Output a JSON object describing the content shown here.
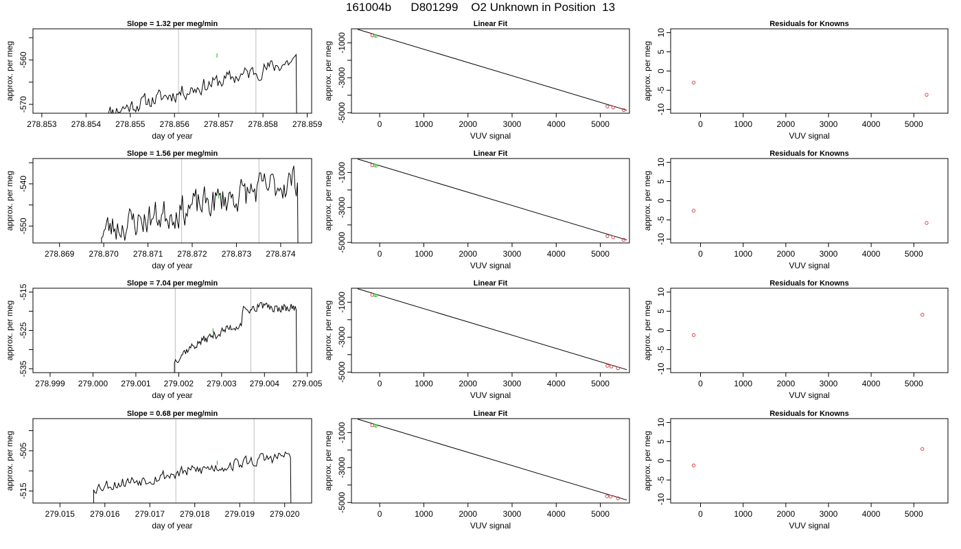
{
  "figure": {
    "title": "161004b      D801299    O2 Unknown in Position  13"
  },
  "chart_data": [
    {
      "type": "line",
      "row": 1,
      "title": "Slope =  1.32  per meg/min",
      "xlabel": "day of year",
      "ylabel": "approx. per meg",
      "xlim": [
        278.8528,
        278.8591
      ],
      "ylim": [
        -572,
        -553
      ],
      "xticks": [
        278.853,
        278.854,
        278.855,
        278.856,
        278.857,
        278.858,
        278.859
      ],
      "xtick_labels": [
        "278.853",
        "278.854",
        "278.855",
        "278.856",
        "278.857",
        "278.858",
        "278.859"
      ],
      "yticks": [
        -570,
        -565,
        -560,
        -555
      ],
      "ytick_labels": [
        "-570",
        "",
        "-560",
        ""
      ],
      "vlines": [
        278.85609,
        278.85784
      ],
      "series": [
        {
          "x_start": 278.8544,
          "x_end": 278.85875,
          "points": 150,
          "start": -572,
          "end": -560,
          "noise": 1.6,
          "seed": 11,
          "drop_to": -572
        }
      ],
      "marker": {
        "x": 278.85696,
        "y": -559
      }
    },
    {
      "type": "scatter",
      "row": 1,
      "title": "Linear Fit",
      "xlabel": "VUV signal",
      "ylabel": "approx. per meg",
      "xlim": [
        -640,
        5660
      ],
      "ylim": [
        -5030,
        -200
      ],
      "xticks": [
        0,
        1000,
        2000,
        3000,
        4000,
        5000
      ],
      "xtick_labels": [
        "0",
        "1000",
        "2000",
        "3000",
        "4000",
        "5000"
      ],
      "yticks": [
        -5000,
        -4000,
        -3000,
        -2000,
        -1000
      ],
      "ytick_labels": [
        "-5000",
        "",
        "-3000",
        "",
        "-1000"
      ],
      "fit": {
        "x": [
          -500,
          5600
        ],
        "y": [
          -230,
          -4860
        ]
      },
      "knowns": {
        "x": [
          -170,
          5160,
          5290,
          5530
        ],
        "y": [
          -580,
          -4640,
          -4700,
          -4850
        ]
      },
      "unknowns": {
        "x": [
          -110,
          -80
        ],
        "y": [
          -600,
          -620
        ]
      }
    },
    {
      "type": "scatter",
      "row": 1,
      "title": "Residuals for Knowns",
      "xlabel": "VUV signal",
      "ylabel": "approx. per meg",
      "xlim": [
        -700,
        5800
      ],
      "ylim": [
        -11,
        11
      ],
      "xticks": [
        0,
        1000,
        2000,
        3000,
        4000,
        5000
      ],
      "xtick_labels": [
        "0",
        "1000",
        "2000",
        "3000",
        "4000",
        "5000"
      ],
      "yticks": [
        -10,
        -5,
        0,
        5,
        10
      ],
      "ytick_labels": [
        "-10",
        "-5",
        "0",
        "5",
        "10"
      ],
      "points": {
        "x": [
          -160,
          5300
        ],
        "y": [
          -3,
          -6.2
        ]
      }
    },
    {
      "type": "line",
      "row": 2,
      "title": "Slope =  1.56  per meg/min",
      "xlabel": "day of year",
      "ylabel": "approx. per meg",
      "xlim": [
        278.8684,
        278.8747
      ],
      "ylim": [
        -554,
        -534
      ],
      "xticks": [
        278.869,
        278.87,
        278.871,
        278.872,
        278.873,
        278.874
      ],
      "xtick_labels": [
        "278.869",
        "278.870",
        "278.871",
        "278.872",
        "278.873",
        "278.874"
      ],
      "yticks": [
        -550,
        -545,
        -540,
        -535
      ],
      "ytick_labels": [
        "-550",
        "",
        "-540",
        ""
      ],
      "vlines": [
        278.87176,
        278.87351
      ],
      "series": [
        {
          "x_start": 278.86995,
          "x_end": 278.87438,
          "points": 160,
          "start": -551,
          "end": -539,
          "noise": 3.4,
          "seed": 23,
          "drop_to": -554
        }
      ],
      "marker": {
        "x": 278.8726,
        "y": -543
      }
    },
    {
      "type": "scatter",
      "row": 2,
      "title": "Linear Fit",
      "xlabel": "VUV signal",
      "ylabel": "approx. per meg",
      "xlim": [
        -640,
        5660
      ],
      "ylim": [
        -5030,
        -200
      ],
      "xticks": [
        0,
        1000,
        2000,
        3000,
        4000,
        5000
      ],
      "xtick_labels": [
        "0",
        "1000",
        "2000",
        "3000",
        "4000",
        "5000"
      ],
      "yticks": [
        -5000,
        -4000,
        -3000,
        -2000,
        -1000
      ],
      "ytick_labels": [
        "-5000",
        "",
        "-3000",
        "",
        "-1000"
      ],
      "fit": {
        "x": [
          -500,
          5600
        ],
        "y": [
          -230,
          -4860
        ]
      },
      "knowns": {
        "x": [
          -170,
          5160,
          5290,
          5530
        ],
        "y": [
          -580,
          -4640,
          -4700,
          -4850
        ]
      },
      "unknowns": {
        "x": [
          -110,
          -80
        ],
        "y": [
          -600,
          -620
        ]
      }
    },
    {
      "type": "scatter",
      "row": 2,
      "title": "Residuals for Knowns",
      "xlabel": "VUV signal",
      "ylabel": "approx. per meg",
      "xlim": [
        -700,
        5800
      ],
      "ylim": [
        -11,
        11
      ],
      "xticks": [
        0,
        1000,
        2000,
        3000,
        4000,
        5000
      ],
      "xtick_labels": [
        "0",
        "1000",
        "2000",
        "3000",
        "4000",
        "5000"
      ],
      "yticks": [
        -10,
        -5,
        0,
        5,
        10
      ],
      "ytick_labels": [
        "-10",
        "-5",
        "0",
        "5",
        "10"
      ],
      "points": {
        "x": [
          -160,
          5300
        ],
        "y": [
          -2.6,
          -5.8
        ]
      }
    },
    {
      "type": "line",
      "row": 3,
      "title": "Slope =  7.04  per meg/min",
      "xlabel": "day of year",
      "ylabel": "approx. per meg",
      "xlim": [
        278.9986,
        279.0051
      ],
      "ylim": [
        -536,
        -514
      ],
      "xticks": [
        278.999,
        279.0,
        279.001,
        279.002,
        279.003,
        279.004,
        279.005
      ],
      "xtick_labels": [
        "278.999",
        "279.000",
        "279.001",
        "279.002",
        "279.003",
        "279.004",
        "279.005"
      ],
      "yticks": [
        -535,
        -530,
        -525,
        -520,
        -515
      ],
      "ytick_labels": [
        "-535",
        "",
        "-525",
        "",
        "-515"
      ],
      "vlines": [
        279.00192,
        279.00368
      ],
      "series": [
        {
          "x_start": 279.0019,
          "x_end": 279.00474,
          "points": 120,
          "start": -533,
          "end": -518,
          "noise": 1.1,
          "seed": 37,
          "drop_to": -536,
          "rise_to": -519
        }
      ],
      "marker": {
        "x": 279.0028,
        "y": -525
      }
    },
    {
      "type": "scatter",
      "row": 3,
      "title": "Linear Fit",
      "xlabel": "VUV signal",
      "ylabel": "approx. per meg",
      "xlim": [
        -640,
        5660
      ],
      "ylim": [
        -5030,
        -200
      ],
      "xticks": [
        0,
        1000,
        2000,
        3000,
        4000,
        5000
      ],
      "xtick_labels": [
        "0",
        "1000",
        "2000",
        "3000",
        "4000",
        "5000"
      ],
      "yticks": [
        -5000,
        -4000,
        -3000,
        -2000,
        -1000
      ],
      "ytick_labels": [
        "-5000",
        "",
        "-3000",
        "",
        "-1000"
      ],
      "fit": {
        "x": [
          -500,
          5600
        ],
        "y": [
          -230,
          -4860
        ]
      },
      "knowns": {
        "x": [
          -170,
          5160,
          5250,
          5400
        ],
        "y": [
          -580,
          -4640,
          -4680,
          -4780
        ]
      },
      "unknowns": {
        "x": [
          -110,
          -80
        ],
        "y": [
          -600,
          -620
        ]
      }
    },
    {
      "type": "scatter",
      "row": 3,
      "title": "Residuals for Knowns",
      "xlabel": "VUV signal",
      "ylabel": "approx. per meg",
      "xlim": [
        -700,
        5800
      ],
      "ylim": [
        -11,
        11
      ],
      "xticks": [
        0,
        1000,
        2000,
        3000,
        4000,
        5000
      ],
      "xtick_labels": [
        "0",
        "1000",
        "2000",
        "3000",
        "4000",
        "5000"
      ],
      "yticks": [
        -10,
        -5,
        0,
        5,
        10
      ],
      "ytick_labels": [
        "-10",
        "-5",
        "0",
        "5",
        "10"
      ],
      "points": {
        "x": [
          -160,
          5200
        ],
        "y": [
          -1.2,
          4.1
        ]
      }
    },
    {
      "type": "line",
      "row": 4,
      "title": "Slope =  0.68  per meg/min",
      "xlabel": "day of year",
      "ylabel": "approx. per meg",
      "xlim": [
        279.0144,
        279.0206
      ],
      "ylim": [
        -518,
        -497
      ],
      "xticks": [
        279.015,
        279.016,
        279.017,
        279.018,
        279.019,
        279.02
      ],
      "xtick_labels": [
        "279.015",
        "279.016",
        "279.017",
        "279.018",
        "279.019",
        "279.020"
      ],
      "yticks": [
        -515,
        -510,
        -505,
        -500
      ],
      "ytick_labels": [
        "-515",
        "",
        "-505",
        ""
      ],
      "vlines": [
        279.01758,
        279.01932
      ],
      "series": [
        {
          "x_start": 279.01575,
          "x_end": 279.02013,
          "points": 150,
          "start": -514,
          "end": -506,
          "noise": 1.4,
          "seed": 53,
          "drop_to": -518
        }
      ],
      "marker": {
        "x": 279.0185,
        "y": -508
      }
    },
    {
      "type": "scatter",
      "row": 4,
      "title": "Linear Fit",
      "xlabel": "VUV signal",
      "ylabel": "approx. per meg",
      "xlim": [
        -640,
        5660
      ],
      "ylim": [
        -5030,
        -200
      ],
      "xticks": [
        0,
        1000,
        2000,
        3000,
        4000,
        5000
      ],
      "xtick_labels": [
        "0",
        "1000",
        "2000",
        "3000",
        "4000",
        "5000"
      ],
      "yticks": [
        -5000,
        -4000,
        -3000,
        -2000,
        -1000
      ],
      "ytick_labels": [
        "-5000",
        "",
        "-3000",
        "",
        "-1000"
      ],
      "fit": {
        "x": [
          -500,
          5600
        ],
        "y": [
          -230,
          -4860
        ]
      },
      "knowns": {
        "x": [
          -170,
          5150,
          5230,
          5400
        ],
        "y": [
          -580,
          -4640,
          -4660,
          -4760
        ]
      },
      "unknowns": {
        "x": [
          -110,
          -80
        ],
        "y": [
          -600,
          -620
        ]
      }
    },
    {
      "type": "scatter",
      "row": 4,
      "title": "Residuals for Knowns",
      "xlabel": "VUV signal",
      "ylabel": "approx. per meg",
      "xlim": [
        -700,
        5800
      ],
      "ylim": [
        -11,
        11
      ],
      "xticks": [
        0,
        1000,
        2000,
        3000,
        4000,
        5000
      ],
      "xtick_labels": [
        "0",
        "1000",
        "2000",
        "3000",
        "4000",
        "5000"
      ],
      "yticks": [
        -10,
        -5,
        0,
        5,
        10
      ],
      "ytick_labels": [
        "-10",
        "-5",
        "0",
        "5",
        "10"
      ],
      "points": {
        "x": [
          -160,
          5200
        ],
        "y": [
          -1.2,
          3.1
        ]
      }
    }
  ],
  "colors": {
    "line": "#000000",
    "vline": "#c8c8c8",
    "known": "#e03030",
    "unknown": "#30c030",
    "axis": "#000000"
  }
}
